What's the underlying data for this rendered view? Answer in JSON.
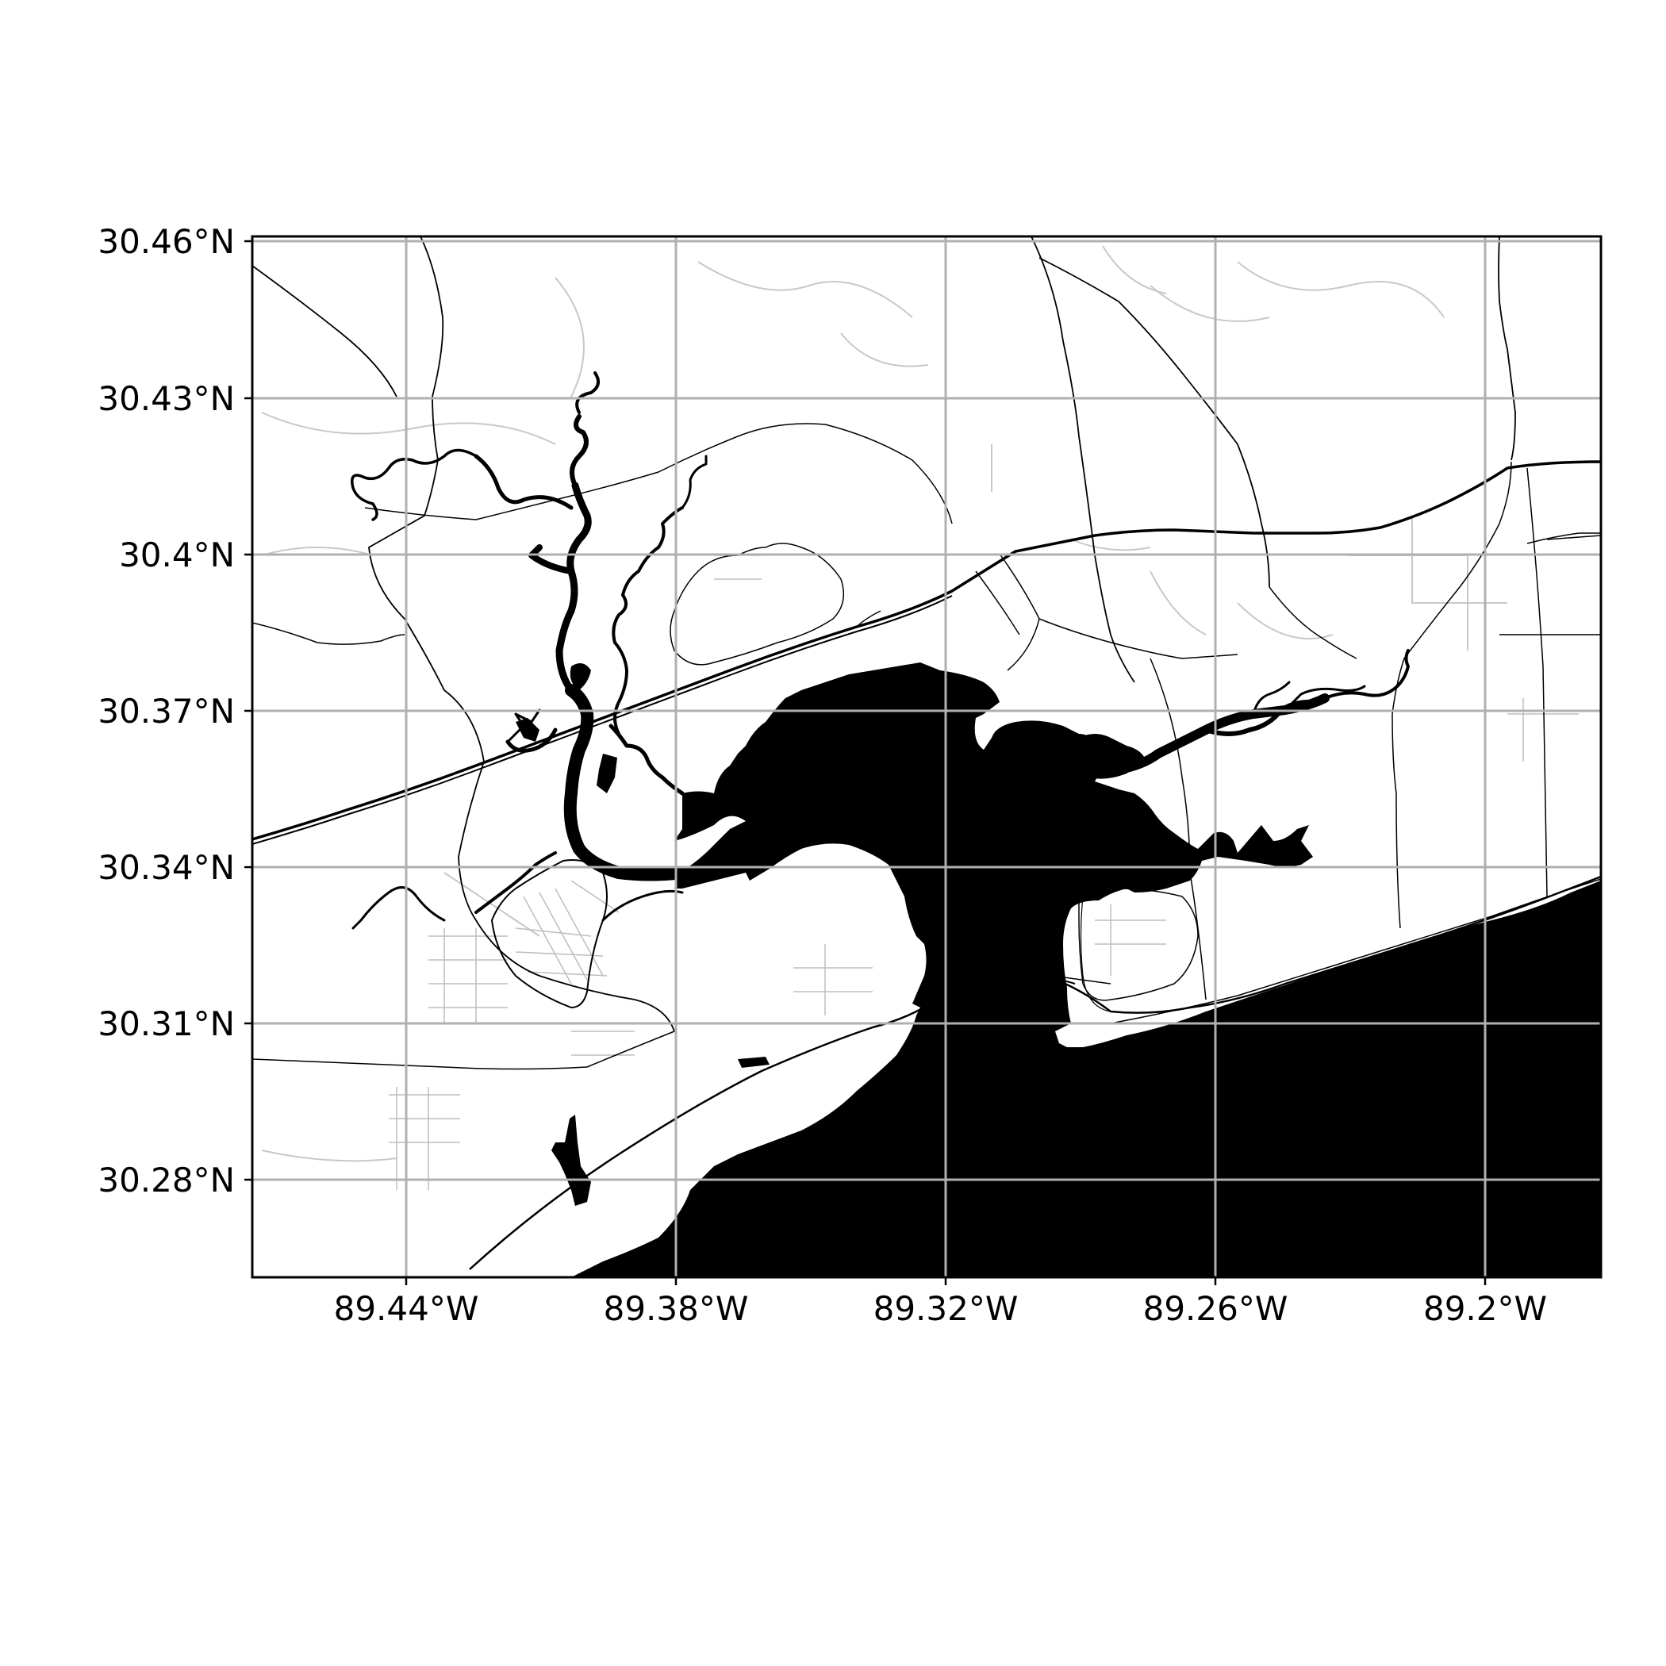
{
  "map": {
    "colors": {
      "water": "#000000",
      "land": "#ffffff",
      "gridline": "#b0b0b0",
      "frame": "#000000",
      "road_major": "#000000",
      "road_minor": "#c8c8c8"
    },
    "lon_range": [
      -89.4689,
      -89.1689
    ],
    "lat_range": [
      30.2625,
      30.4625
    ],
    "lon_ticks": [
      -89.44,
      -89.38,
      -89.32,
      -89.26,
      -89.2
    ],
    "lat_ticks": [
      30.46,
      30.43,
      30.4,
      30.37,
      30.34,
      30.31,
      30.28
    ],
    "x_tick_labels": [
      "89.44°W",
      "89.38°W",
      "89.32°W",
      "89.26°W",
      "89.2°W"
    ],
    "y_tick_labels": [
      "30.46°N",
      "30.43°N",
      "30.4°N",
      "30.37°N",
      "30.34°N",
      "30.31°N",
      "30.28°N"
    ],
    "grid": true
  }
}
